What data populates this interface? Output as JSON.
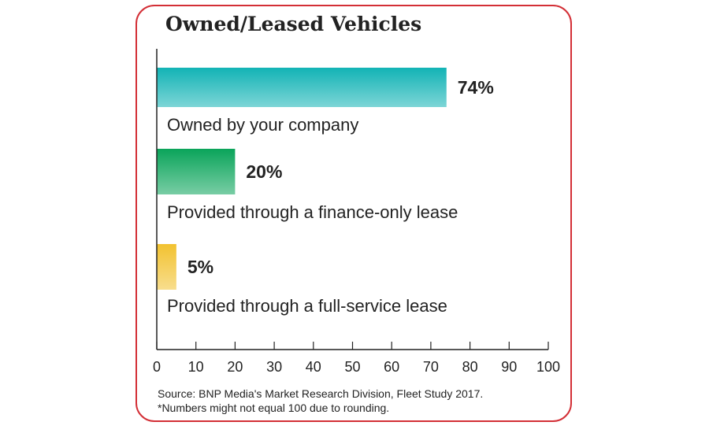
{
  "chart_data": {
    "type": "bar",
    "orientation": "horizontal",
    "title": "Owned/Leased Vehicles",
    "categories": [
      "Owned by your company",
      "Provided through a finance-only lease",
      "Provided through a full-service lease"
    ],
    "values": [
      74,
      20,
      5
    ],
    "value_labels": [
      "74%",
      "20%",
      "5%"
    ],
    "colors": [
      "#12b3b5",
      "#0aa45a",
      "#f2c230"
    ],
    "xlim": [
      0,
      100
    ],
    "xticks": [
      0,
      10,
      20,
      30,
      40,
      50,
      60,
      70,
      80,
      90,
      100
    ],
    "grid": false,
    "legend": "none"
  },
  "footer": {
    "source": "Source: BNP Media's Market Research Division, Fleet Study 2017.",
    "note": "*Numbers might not equal 100 due to rounding."
  },
  "colors": {
    "border": "#d32f36",
    "text": "#222222"
  }
}
